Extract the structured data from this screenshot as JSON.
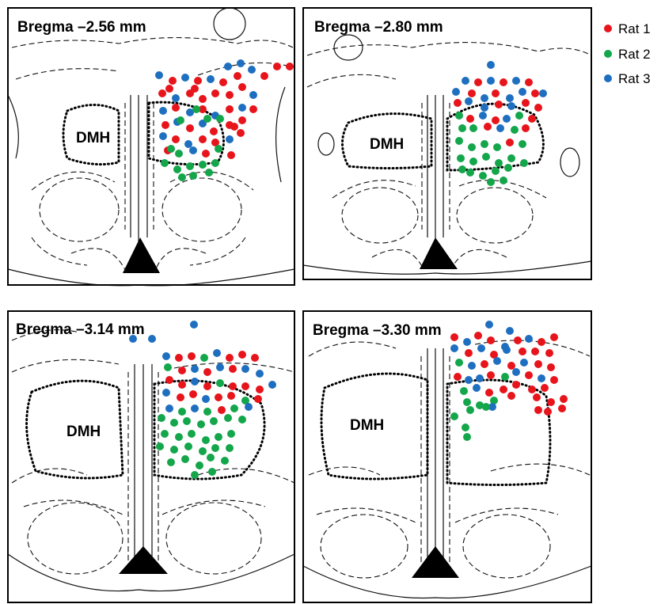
{
  "legend": {
    "items": [
      {
        "label": "Rat 1",
        "color": "#e8141b"
      },
      {
        "label": "Rat 2",
        "color": "#13a64a"
      },
      {
        "label": "Rat 3",
        "color": "#1f6fc0"
      }
    ]
  },
  "panels": [
    {
      "title": "Bregma –2.56 mm",
      "region_label": "DMH"
    },
    {
      "title": "Bregma –2.80 mm",
      "region_label": "DMH"
    },
    {
      "title": "Bregma –3.14 mm",
      "region_label": "DMH"
    },
    {
      "title": "Bregma –3.30 mm",
      "region_label": "DMH"
    }
  ]
}
